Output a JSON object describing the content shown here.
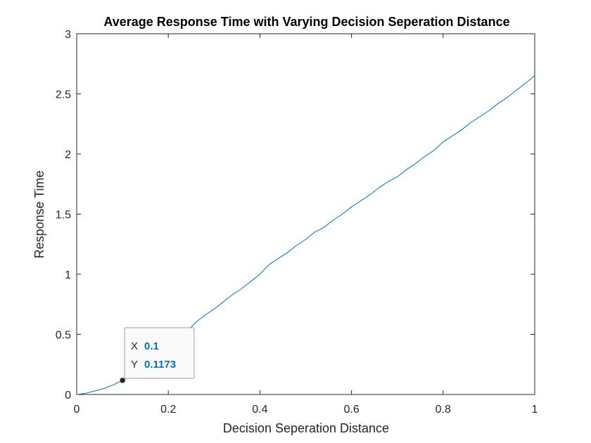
{
  "chart_data": {
    "type": "line",
    "title": "Average Response Time with Varying Decision Seperation Distance",
    "xlabel": "Decision Seperation Distance",
    "ylabel": "Response Time",
    "xlim": [
      0,
      1
    ],
    "ylim": [
      0,
      3
    ],
    "xticks": [
      0,
      0.2,
      0.4,
      0.6,
      0.8,
      1
    ],
    "yticks": [
      0,
      0.5,
      1,
      1.5,
      2,
      2.5,
      3
    ],
    "xtick_labels": [
      "0",
      "0.2",
      "0.4",
      "0.6",
      "0.8",
      "1"
    ],
    "ytick_labels": [
      "0",
      "0.5",
      "1",
      "1.5",
      "2",
      "2.5",
      "3"
    ],
    "grid": false,
    "line_color": "#0072bd",
    "series": [
      {
        "x": [
          0,
          0.02,
          0.04,
          0.06,
          0.08,
          0.1,
          0.12,
          0.14,
          0.16,
          0.18,
          0.2,
          0.22,
          0.24,
          0.26,
          0.28,
          0.3,
          0.32,
          0.34,
          0.36,
          0.38,
          0.4,
          0.42,
          0.44,
          0.46,
          0.48,
          0.5,
          0.52,
          0.54,
          0.56,
          0.58,
          0.6,
          0.62,
          0.64,
          0.66,
          0.68,
          0.7,
          0.72,
          0.74,
          0.76,
          0.78,
          0.8,
          0.82,
          0.84,
          0.86,
          0.88,
          0.9,
          0.92,
          0.94,
          0.96,
          0.98,
          1
        ],
        "y": [
          0,
          0.01,
          0.03,
          0.05,
          0.08,
          0.117,
          0.16,
          0.21,
          0.27,
          0.34,
          0.4,
          0.46,
          0.52,
          0.6,
          0.66,
          0.71,
          0.77,
          0.83,
          0.88,
          0.94,
          1.0,
          1.08,
          1.13,
          1.18,
          1.24,
          1.29,
          1.35,
          1.39,
          1.45,
          1.5,
          1.56,
          1.61,
          1.66,
          1.72,
          1.77,
          1.81,
          1.87,
          1.92,
          1.98,
          2.03,
          2.1,
          2.15,
          2.2,
          2.26,
          2.31,
          2.36,
          2.42,
          2.47,
          2.53,
          2.59,
          2.65
        ]
      }
    ],
    "datatip": {
      "x_key": "X",
      "y_key": "Y",
      "x_value": "0.1",
      "y_value": "0.1173",
      "x": 0.1,
      "y": 0.1173
    }
  }
}
